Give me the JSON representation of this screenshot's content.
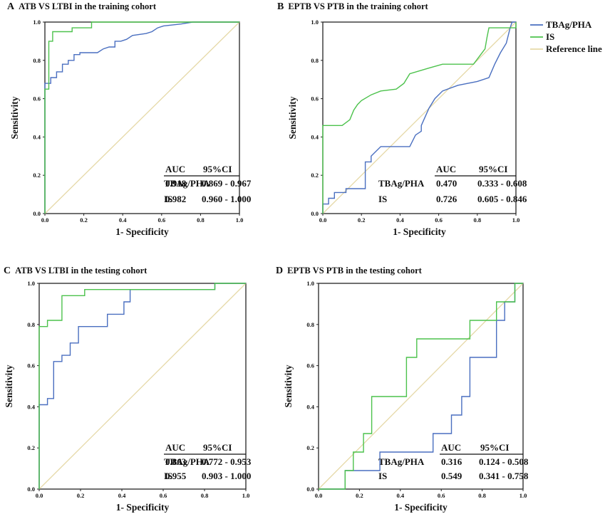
{
  "legend": {
    "items": [
      {
        "label": "TBAg/PHA",
        "color": "#4a6fc0"
      },
      {
        "label": "IS",
        "color": "#4cc24c"
      },
      {
        "label": "Reference line",
        "color": "#e6d9a8"
      }
    ]
  },
  "chart_data": [
    {
      "type": "line",
      "panel_letter": "A",
      "title": "ATB VS LTBI in the training cohort",
      "xlabel": "1- Specificity",
      "ylabel": "Sensitivity",
      "xlim": [
        0,
        1
      ],
      "ylim": [
        0,
        1
      ],
      "x_ticks": [
        "0.0",
        "0.2",
        "0.4",
        "0.6",
        "0.8",
        "1.0"
      ],
      "y_ticks": [
        "0.0",
        "0.2",
        "0.4",
        "0.6",
        "0.8",
        "1.0"
      ],
      "series": [
        {
          "name": "TBAg/PHA",
          "points": [
            [
              0,
              0
            ],
            [
              0,
              0.68
            ],
            [
              0.03,
              0.68
            ],
            [
              0.03,
              0.71
            ],
            [
              0.06,
              0.71
            ],
            [
              0.06,
              0.74
            ],
            [
              0.09,
              0.74
            ],
            [
              0.09,
              0.78
            ],
            [
              0.12,
              0.78
            ],
            [
              0.12,
              0.8
            ],
            [
              0.15,
              0.8
            ],
            [
              0.15,
              0.83
            ],
            [
              0.18,
              0.83
            ],
            [
              0.18,
              0.84
            ],
            [
              0.27,
              0.84
            ],
            [
              0.3,
              0.86
            ],
            [
              0.33,
              0.87
            ],
            [
              0.36,
              0.87
            ],
            [
              0.36,
              0.9
            ],
            [
              0.39,
              0.9
            ],
            [
              0.42,
              0.91
            ],
            [
              0.45,
              0.93
            ],
            [
              0.52,
              0.94
            ],
            [
              0.55,
              0.95
            ],
            [
              0.58,
              0.97
            ],
            [
              0.61,
              0.98
            ],
            [
              0.7,
              0.99
            ],
            [
              0.76,
              1.0
            ],
            [
              1,
              1
            ]
          ]
        },
        {
          "name": "IS",
          "points": [
            [
              0,
              0
            ],
            [
              0,
              0.65
            ],
            [
              0.02,
              0.65
            ],
            [
              0.02,
              0.9
            ],
            [
              0.04,
              0.9
            ],
            [
              0.04,
              0.95
            ],
            [
              0.14,
              0.95
            ],
            [
              0.14,
              0.97
            ],
            [
              0.24,
              0.97
            ],
            [
              0.24,
              1.0
            ],
            [
              1,
              1
            ]
          ]
        }
      ],
      "table": {
        "headers": [
          "AUC",
          "95%CI"
        ],
        "rows": [
          {
            "label": "TBAg/PHA",
            "auc": "0.918",
            "ci": "0.869 - 0.967"
          },
          {
            "label": "IS",
            "auc": "0.982",
            "ci": "0.960 - 1.000"
          }
        ]
      }
    },
    {
      "type": "line",
      "panel_letter": "B",
      "title": "EPTB VS PTB in the training cohort",
      "xlabel": "1- Specificity",
      "ylabel": "Sensitivity",
      "xlim": [
        0,
        1
      ],
      "ylim": [
        0,
        1
      ],
      "x_ticks": [
        "0.0",
        "0.2",
        "0.4",
        "0.6",
        "0.8",
        "1.0"
      ],
      "y_ticks": [
        "0.0",
        "0.2",
        "0.4",
        "0.6",
        "0.8",
        "1.0"
      ],
      "series": [
        {
          "name": "TBAg/PHA",
          "points": [
            [
              0,
              0
            ],
            [
              0,
              0.05
            ],
            [
              0.03,
              0.05
            ],
            [
              0.03,
              0.08
            ],
            [
              0.06,
              0.08
            ],
            [
              0.06,
              0.11
            ],
            [
              0.12,
              0.11
            ],
            [
              0.12,
              0.13
            ],
            [
              0.22,
              0.13
            ],
            [
              0.22,
              0.27
            ],
            [
              0.25,
              0.27
            ],
            [
              0.25,
              0.3
            ],
            [
              0.3,
              0.35
            ],
            [
              0.45,
              0.35
            ],
            [
              0.48,
              0.41
            ],
            [
              0.51,
              0.43
            ],
            [
              0.51,
              0.46
            ],
            [
              0.55,
              0.55
            ],
            [
              0.58,
              0.6
            ],
            [
              0.62,
              0.64
            ],
            [
              0.7,
              0.67
            ],
            [
              0.8,
              0.69
            ],
            [
              0.86,
              0.71
            ],
            [
              0.89,
              0.78
            ],
            [
              0.92,
              0.84
            ],
            [
              0.95,
              0.89
            ],
            [
              0.97,
              0.97
            ],
            [
              0.98,
              1.0
            ],
            [
              1,
              1
            ]
          ]
        },
        {
          "name": "IS",
          "points": [
            [
              0,
              0
            ],
            [
              0,
              0.46
            ],
            [
              0.1,
              0.46
            ],
            [
              0.14,
              0.49
            ],
            [
              0.16,
              0.54
            ],
            [
              0.18,
              0.57
            ],
            [
              0.2,
              0.59
            ],
            [
              0.25,
              0.62
            ],
            [
              0.3,
              0.64
            ],
            [
              0.38,
              0.65
            ],
            [
              0.42,
              0.68
            ],
            [
              0.45,
              0.73
            ],
            [
              0.55,
              0.76
            ],
            [
              0.62,
              0.78
            ],
            [
              0.78,
              0.78
            ],
            [
              0.84,
              0.86
            ],
            [
              0.85,
              0.92
            ],
            [
              0.86,
              0.97
            ],
            [
              1,
              0.97
            ],
            [
              1,
              1
            ]
          ]
        }
      ],
      "table": {
        "headers": [
          "AUC",
          "95%CI"
        ],
        "rows": [
          {
            "label": "TBAg/PHA",
            "auc": "0.470",
            "ci": "0.333 - 0.608"
          },
          {
            "label": "IS",
            "auc": "0.726",
            "ci": "0.605 - 0.846"
          }
        ]
      }
    },
    {
      "type": "line",
      "panel_letter": "C",
      "title": "ATB VS LTBI in the testing cohort",
      "xlabel": "1- Specificity",
      "ylabel": "Sensitivity",
      "xlim": [
        0,
        1
      ],
      "ylim": [
        0,
        1
      ],
      "x_ticks": [
        "0.0",
        "0.2",
        "0.4",
        "0.6",
        "0.8",
        "1.0"
      ],
      "y_ticks": [
        "0.0",
        "0.2",
        "0.4",
        "0.6",
        "0.8",
        "1.0"
      ],
      "series": [
        {
          "name": "TBAg/PHA",
          "points": [
            [
              0,
              0
            ],
            [
              0,
              0.41
            ],
            [
              0.04,
              0.41
            ],
            [
              0.04,
              0.44
            ],
            [
              0.07,
              0.44
            ],
            [
              0.07,
              0.62
            ],
            [
              0.11,
              0.62
            ],
            [
              0.11,
              0.65
            ],
            [
              0.15,
              0.65
            ],
            [
              0.15,
              0.71
            ],
            [
              0.19,
              0.71
            ],
            [
              0.19,
              0.79
            ],
            [
              0.33,
              0.79
            ],
            [
              0.33,
              0.85
            ],
            [
              0.41,
              0.85
            ],
            [
              0.41,
              0.91
            ],
            [
              0.44,
              0.91
            ],
            [
              0.44,
              0.97
            ],
            [
              0.85,
              0.97
            ],
            [
              0.85,
              1.0
            ],
            [
              1,
              1
            ]
          ]
        },
        {
          "name": "IS",
          "points": [
            [
              0,
              0
            ],
            [
              0,
              0.79
            ],
            [
              0.04,
              0.79
            ],
            [
              0.04,
              0.82
            ],
            [
              0.11,
              0.82
            ],
            [
              0.11,
              0.94
            ],
            [
              0.22,
              0.94
            ],
            [
              0.22,
              0.97
            ],
            [
              0.85,
              0.97
            ],
            [
              0.85,
              1.0
            ],
            [
              1,
              1
            ]
          ]
        }
      ],
      "table": {
        "headers": [
          "AUC",
          "95%CI"
        ],
        "rows": [
          {
            "label": "TBAg/PHA",
            "auc": "0.863",
            "ci": "0.772 - 0.953"
          },
          {
            "label": "IS",
            "auc": "0.955",
            "ci": "0.903 - 1.000"
          }
        ]
      }
    },
    {
      "type": "line",
      "panel_letter": "D",
      "title": "EPTB VS PTB in the testing cohort",
      "xlabel": "1- Specificity",
      "ylabel": "Sensitivity",
      "xlim": [
        0,
        1
      ],
      "ylim": [
        0,
        1
      ],
      "x_ticks": [
        "0.0",
        "0.2",
        "0.4",
        "0.6",
        "0.8",
        "1.0"
      ],
      "y_ticks": [
        "0.0",
        "0.2",
        "0.4",
        "0.6",
        "0.8",
        "1.0"
      ],
      "series": [
        {
          "name": "TBAg/PHA",
          "points": [
            [
              0,
              0
            ],
            [
              0.13,
              0
            ],
            [
              0.13,
              0.09
            ],
            [
              0.3,
              0.09
            ],
            [
              0.3,
              0.18
            ],
            [
              0.56,
              0.18
            ],
            [
              0.56,
              0.27
            ],
            [
              0.65,
              0.27
            ],
            [
              0.65,
              0.36
            ],
            [
              0.7,
              0.36
            ],
            [
              0.7,
              0.45
            ],
            [
              0.74,
              0.45
            ],
            [
              0.74,
              0.64
            ],
            [
              0.87,
              0.64
            ],
            [
              0.87,
              0.82
            ],
            [
              0.91,
              0.82
            ],
            [
              0.91,
              0.91
            ],
            [
              0.96,
              0.91
            ],
            [
              0.96,
              1.0
            ],
            [
              1,
              1
            ]
          ]
        },
        {
          "name": "IS",
          "points": [
            [
              0,
              0
            ],
            [
              0.13,
              0
            ],
            [
              0.13,
              0.09
            ],
            [
              0.17,
              0.09
            ],
            [
              0.17,
              0.18
            ],
            [
              0.22,
              0.18
            ],
            [
              0.22,
              0.27
            ],
            [
              0.26,
              0.27
            ],
            [
              0.26,
              0.45
            ],
            [
              0.43,
              0.45
            ],
            [
              0.43,
              0.64
            ],
            [
              0.48,
              0.64
            ],
            [
              0.48,
              0.73
            ],
            [
              0.74,
              0.73
            ],
            [
              0.74,
              0.82
            ],
            [
              0.87,
              0.82
            ],
            [
              0.87,
              0.91
            ],
            [
              0.96,
              0.91
            ],
            [
              0.96,
              1.0
            ],
            [
              1,
              1
            ]
          ]
        }
      ],
      "table": {
        "headers": [
          "AUC",
          "95%CI"
        ],
        "rows": [
          {
            "label": "TBAg/PHA",
            "auc": "0.316",
            "ci": "0.124 - 0.508"
          },
          {
            "label": "IS",
            "auc": "0.549",
            "ci": "0.341 - 0.758"
          }
        ]
      }
    }
  ]
}
